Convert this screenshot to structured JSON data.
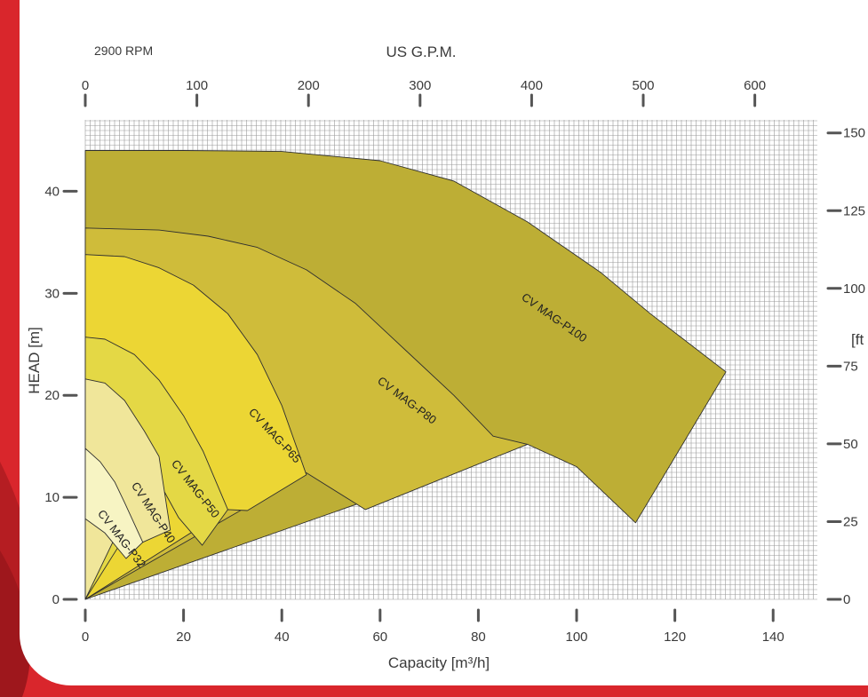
{
  "chart_data": {
    "type": "area",
    "top_left_note": "2900 RPM",
    "top_axis_title": "US G.P.M.",
    "top_ticks": [
      "0",
      "100",
      "200",
      "300",
      "400",
      "500",
      "600"
    ],
    "left_axis_title": "HEAD [m]",
    "left_ticks": [
      "0",
      "10",
      "20",
      "30",
      "40"
    ],
    "right_axis_title": "[ft",
    "right_ticks": [
      "0",
      "25",
      "50",
      "75",
      "100",
      "125",
      "150"
    ],
    "x_axis_title": "Capacity  [m³/h]",
    "x_ticks": [
      "0",
      "20",
      "40",
      "60",
      "80",
      "100",
      "120",
      "140"
    ],
    "xlim": [
      0,
      149
    ],
    "ylim": [
      0,
      47
    ],
    "gpm_per_m3h": 4.4029,
    "ft_per_m": 3.2808,
    "grid": true,
    "series": [
      {
        "name": "CV MAG-P100",
        "color": "#bdae35",
        "label_at": [
          95,
          27.3
        ],
        "label_angle": 35,
        "outline": [
          [
            0,
            44
          ],
          [
            20,
            44
          ],
          [
            40,
            43.9
          ],
          [
            60,
            43
          ],
          [
            75,
            41
          ],
          [
            90,
            37
          ],
          [
            105,
            32
          ],
          [
            115,
            28
          ],
          [
            130.4,
            22.3
          ],
          [
            112,
            7.5
          ],
          [
            100,
            13
          ],
          [
            90,
            15.2
          ]
        ]
      },
      {
        "name": "CV MAG-P80",
        "color": "#cfbc3a",
        "label_at": [
          65,
          19.2
        ],
        "label_angle": 37,
        "outline": [
          [
            0,
            36.4
          ],
          [
            15,
            36.2
          ],
          [
            25,
            35.6
          ],
          [
            35,
            34.5
          ],
          [
            45,
            32.3
          ],
          [
            55,
            29
          ],
          [
            65,
            24.5
          ],
          [
            75,
            20
          ],
          [
            83,
            16
          ],
          [
            90,
            15.2
          ],
          [
            57,
            8.8
          ],
          [
            45,
            12.4
          ]
        ]
      },
      {
        "name": "CV MAG-P65",
        "color": "#ecd634",
        "label_at": [
          38,
          15.8
        ],
        "label_angle": 47,
        "outline": [
          [
            0,
            33.8
          ],
          [
            8,
            33.6
          ],
          [
            15,
            32.5
          ],
          [
            22,
            30.8
          ],
          [
            29,
            28
          ],
          [
            35,
            24
          ],
          [
            40,
            19
          ],
          [
            45,
            12.2
          ],
          [
            33,
            8.7
          ],
          [
            29,
            8.8
          ]
        ]
      },
      {
        "name": "CV MAG-P50",
        "color": "#e4d845",
        "label_at": [
          21.8,
          10.6
        ],
        "label_angle": 52,
        "outline": [
          [
            0,
            25.7
          ],
          [
            4,
            25.5
          ],
          [
            10,
            24
          ],
          [
            15,
            21.5
          ],
          [
            20,
            18
          ],
          [
            24,
            14.5
          ],
          [
            29,
            8.8
          ],
          [
            23.8,
            5.3
          ],
          [
            19,
            8
          ],
          [
            15,
            11.5
          ]
        ]
      },
      {
        "name": "CV MAG-P40",
        "color": "#f0e69a",
        "label_at": [
          13.2,
          8.3
        ],
        "label_angle": 57,
        "outline": [
          [
            0,
            21.6
          ],
          [
            4,
            21.2
          ],
          [
            8,
            19.5
          ],
          [
            12,
            16.5
          ],
          [
            15,
            14
          ],
          [
            17.3,
            6.8
          ],
          [
            11.7,
            5.6
          ],
          [
            8,
            8
          ]
        ]
      },
      {
        "name": "CV MAG-P32",
        "color": "#f7f4c3",
        "label_at": [
          6.8,
          5.7
        ],
        "label_angle": 52,
        "outline": [
          [
            0,
            14.8
          ],
          [
            3,
            13.5
          ],
          [
            6,
            11.5
          ],
          [
            8,
            9.5
          ],
          [
            11.7,
            5.6
          ],
          [
            8.3,
            4
          ],
          [
            4,
            6.5
          ],
          [
            0,
            7.9
          ]
        ]
      }
    ]
  }
}
